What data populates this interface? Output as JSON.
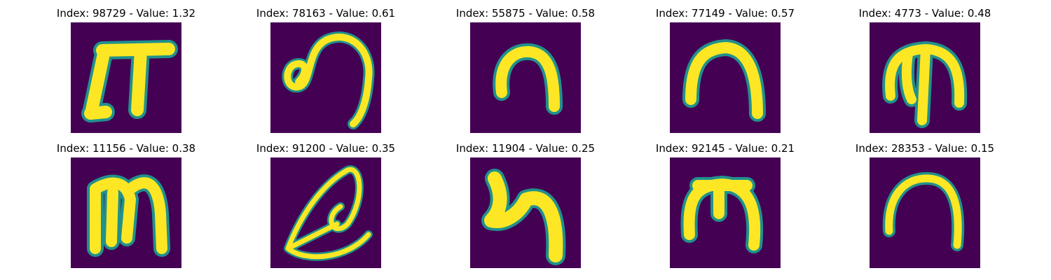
{
  "figure": {
    "colors": {
      "background": "#440154",
      "stroke": "#fde725",
      "edge": "#21918c"
    },
    "tiles": [
      {
        "title": "Index: 98729 - Value: 1.32",
        "glyph": "pi-icon"
      },
      {
        "title": "Index: 78163 - Value: 0.61",
        "glyph": "hook-icon"
      },
      {
        "title": "Index: 55875 - Value: 0.58",
        "glyph": "arch-icon"
      },
      {
        "title": "Index: 77149 - Value: 0.57",
        "glyph": "arch-icon"
      },
      {
        "title": "Index: 4773 - Value: 0.48",
        "glyph": "trident-icon"
      },
      {
        "title": "Index: 11156 - Value: 0.38",
        "glyph": "m-icon"
      },
      {
        "title": "Index: 91200 - Value: 0.35",
        "glyph": "loop-icon"
      },
      {
        "title": "Index: 11904 - Value: 0.25",
        "glyph": "hook-arch-icon"
      },
      {
        "title": "Index: 92145 - Value: 0.21",
        "glyph": "m-arch-icon"
      },
      {
        "title": "Index: 28353 - Value: 0.15",
        "glyph": "arch-icon"
      }
    ]
  }
}
